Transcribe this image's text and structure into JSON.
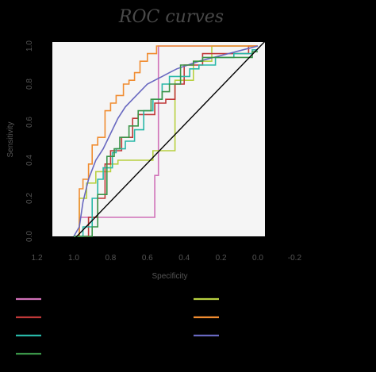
{
  "chart_data": {
    "type": "line",
    "title": "ROC curves",
    "xlabel": "Specificity",
    "ylabel": "Sensitivity",
    "xlim": [
      -0.2,
      1.2
    ],
    "ylim": [
      0.0,
      1.0
    ],
    "x_reversed": true,
    "xticks": [
      "1.2",
      "1.0",
      "0.8",
      "0.6",
      "0.4",
      "0.2",
      "0.0",
      "-0.2"
    ],
    "yticks": [
      "0.0",
      "0.2",
      "0.4",
      "0.6",
      "0.8",
      "1.0"
    ],
    "grid": false,
    "legend": "below",
    "reference_line": {
      "from": [
        1.0,
        0.0
      ],
      "to": [
        0.0,
        1.0
      ],
      "color": "#000000"
    },
    "series": [
      {
        "color": "#d070b8",
        "points": [
          [
            1.0,
            0.0
          ],
          [
            0.97,
            0.0
          ],
          [
            0.97,
            0.1
          ],
          [
            0.9,
            0.1
          ],
          [
            0.9,
            0.1
          ],
          [
            0.6,
            0.1
          ],
          [
            0.56,
            0.1
          ],
          [
            0.56,
            0.32
          ],
          [
            0.54,
            0.32
          ],
          [
            0.54,
            1.0
          ],
          [
            0.0,
            1.0
          ]
        ]
      },
      {
        "color": "#b8d040",
        "points": [
          [
            1.0,
            0.0
          ],
          [
            0.97,
            0.0
          ],
          [
            0.97,
            0.2
          ],
          [
            0.93,
            0.2
          ],
          [
            0.93,
            0.28
          ],
          [
            0.88,
            0.28
          ],
          [
            0.88,
            0.34
          ],
          [
            0.8,
            0.34
          ],
          [
            0.8,
            0.38
          ],
          [
            0.76,
            0.38
          ],
          [
            0.76,
            0.4
          ],
          [
            0.57,
            0.4
          ],
          [
            0.57,
            0.45
          ],
          [
            0.45,
            0.45
          ],
          [
            0.45,
            0.82
          ],
          [
            0.35,
            0.82
          ],
          [
            0.35,
            0.92
          ],
          [
            0.25,
            0.92
          ],
          [
            0.25,
            1.0
          ],
          [
            0.0,
            1.0
          ]
        ]
      },
      {
        "color": "#c03838",
        "points": [
          [
            1.0,
            0.0
          ],
          [
            0.92,
            0.0
          ],
          [
            0.92,
            0.1
          ],
          [
            0.87,
            0.1
          ],
          [
            0.87,
            0.2
          ],
          [
            0.83,
            0.2
          ],
          [
            0.83,
            0.38
          ],
          [
            0.8,
            0.38
          ],
          [
            0.8,
            0.45
          ],
          [
            0.74,
            0.45
          ],
          [
            0.74,
            0.52
          ],
          [
            0.68,
            0.52
          ],
          [
            0.68,
            0.62
          ],
          [
            0.65,
            0.62
          ],
          [
            0.65,
            0.64
          ],
          [
            0.56,
            0.64
          ],
          [
            0.56,
            0.7
          ],
          [
            0.5,
            0.7
          ],
          [
            0.5,
            0.72
          ],
          [
            0.45,
            0.72
          ],
          [
            0.45,
            0.8
          ],
          [
            0.4,
            0.8
          ],
          [
            0.4,
            0.9
          ],
          [
            0.3,
            0.9
          ],
          [
            0.3,
            0.96
          ],
          [
            0.05,
            0.96
          ],
          [
            0.05,
            1.0
          ],
          [
            0.0,
            1.0
          ]
        ]
      },
      {
        "color": "#f08c30",
        "points": [
          [
            1.0,
            0.0
          ],
          [
            0.97,
            0.0
          ],
          [
            0.97,
            0.25
          ],
          [
            0.95,
            0.25
          ],
          [
            0.95,
            0.3
          ],
          [
            0.92,
            0.3
          ],
          [
            0.92,
            0.38
          ],
          [
            0.9,
            0.38
          ],
          [
            0.9,
            0.48
          ],
          [
            0.87,
            0.48
          ],
          [
            0.87,
            0.52
          ],
          [
            0.83,
            0.52
          ],
          [
            0.83,
            0.66
          ],
          [
            0.8,
            0.66
          ],
          [
            0.8,
            0.7
          ],
          [
            0.77,
            0.7
          ],
          [
            0.77,
            0.74
          ],
          [
            0.73,
            0.74
          ],
          [
            0.73,
            0.8
          ],
          [
            0.7,
            0.8
          ],
          [
            0.7,
            0.82
          ],
          [
            0.67,
            0.82
          ],
          [
            0.67,
            0.86
          ],
          [
            0.64,
            0.86
          ],
          [
            0.64,
            0.92
          ],
          [
            0.6,
            0.92
          ],
          [
            0.6,
            0.96
          ],
          [
            0.55,
            0.96
          ],
          [
            0.55,
            1.0
          ],
          [
            0.0,
            1.0
          ]
        ]
      },
      {
        "color": "#28b8a8",
        "points": [
          [
            1.0,
            0.0
          ],
          [
            0.95,
            0.0
          ],
          [
            0.95,
            0.05
          ],
          [
            0.9,
            0.05
          ],
          [
            0.9,
            0.2
          ],
          [
            0.87,
            0.2
          ],
          [
            0.87,
            0.3
          ],
          [
            0.84,
            0.3
          ],
          [
            0.84,
            0.36
          ],
          [
            0.79,
            0.36
          ],
          [
            0.79,
            0.44
          ],
          [
            0.77,
            0.44
          ],
          [
            0.77,
            0.46
          ],
          [
            0.72,
            0.46
          ],
          [
            0.72,
            0.5
          ],
          [
            0.67,
            0.5
          ],
          [
            0.67,
            0.56
          ],
          [
            0.62,
            0.56
          ],
          [
            0.62,
            0.66
          ],
          [
            0.57,
            0.66
          ],
          [
            0.57,
            0.72
          ],
          [
            0.52,
            0.72
          ],
          [
            0.52,
            0.8
          ],
          [
            0.48,
            0.8
          ],
          [
            0.48,
            0.84
          ],
          [
            0.37,
            0.84
          ],
          [
            0.37,
            0.88
          ],
          [
            0.32,
            0.88
          ],
          [
            0.32,
            0.9
          ],
          [
            0.23,
            0.9
          ],
          [
            0.23,
            0.94
          ],
          [
            0.13,
            0.94
          ],
          [
            0.13,
            0.96
          ],
          [
            0.03,
            0.96
          ],
          [
            0.03,
            0.98
          ],
          [
            0.0,
            0.98
          ]
        ]
      },
      {
        "color": "#6868c0",
        "points": [
          [
            1.0,
            0.0
          ],
          [
            0.97,
            0.05
          ],
          [
            0.95,
            0.18
          ],
          [
            0.92,
            0.3
          ],
          [
            0.88,
            0.4
          ],
          [
            0.84,
            0.46
          ],
          [
            0.8,
            0.54
          ],
          [
            0.76,
            0.62
          ],
          [
            0.72,
            0.68
          ],
          [
            0.68,
            0.72
          ],
          [
            0.64,
            0.76
          ],
          [
            0.6,
            0.8
          ],
          [
            0.56,
            0.82
          ],
          [
            0.52,
            0.84
          ],
          [
            0.48,
            0.86
          ],
          [
            0.44,
            0.88
          ],
          [
            0.38,
            0.9
          ],
          [
            0.32,
            0.92
          ],
          [
            0.24,
            0.94
          ],
          [
            0.16,
            0.96
          ],
          [
            0.08,
            0.98
          ],
          [
            0.0,
            1.0
          ]
        ]
      },
      {
        "color": "#3a9448",
        "points": [
          [
            1.0,
            0.0
          ],
          [
            0.9,
            0.0
          ],
          [
            0.9,
            0.05
          ],
          [
            0.87,
            0.05
          ],
          [
            0.87,
            0.22
          ],
          [
            0.82,
            0.22
          ],
          [
            0.82,
            0.42
          ],
          [
            0.78,
            0.42
          ],
          [
            0.78,
            0.46
          ],
          [
            0.75,
            0.46
          ],
          [
            0.75,
            0.52
          ],
          [
            0.7,
            0.52
          ],
          [
            0.7,
            0.58
          ],
          [
            0.65,
            0.58
          ],
          [
            0.65,
            0.66
          ],
          [
            0.58,
            0.66
          ],
          [
            0.58,
            0.72
          ],
          [
            0.52,
            0.72
          ],
          [
            0.52,
            0.76
          ],
          [
            0.48,
            0.76
          ],
          [
            0.48,
            0.8
          ],
          [
            0.42,
            0.8
          ],
          [
            0.42,
            0.9
          ],
          [
            0.35,
            0.9
          ],
          [
            0.35,
            0.92
          ],
          [
            0.3,
            0.92
          ],
          [
            0.3,
            0.94
          ],
          [
            0.03,
            0.94
          ],
          [
            0.03,
            0.97
          ],
          [
            0.0,
            0.97
          ]
        ]
      }
    ],
    "legend_layout": [
      0,
      2,
      4,
      6,
      1,
      3,
      5
    ]
  }
}
